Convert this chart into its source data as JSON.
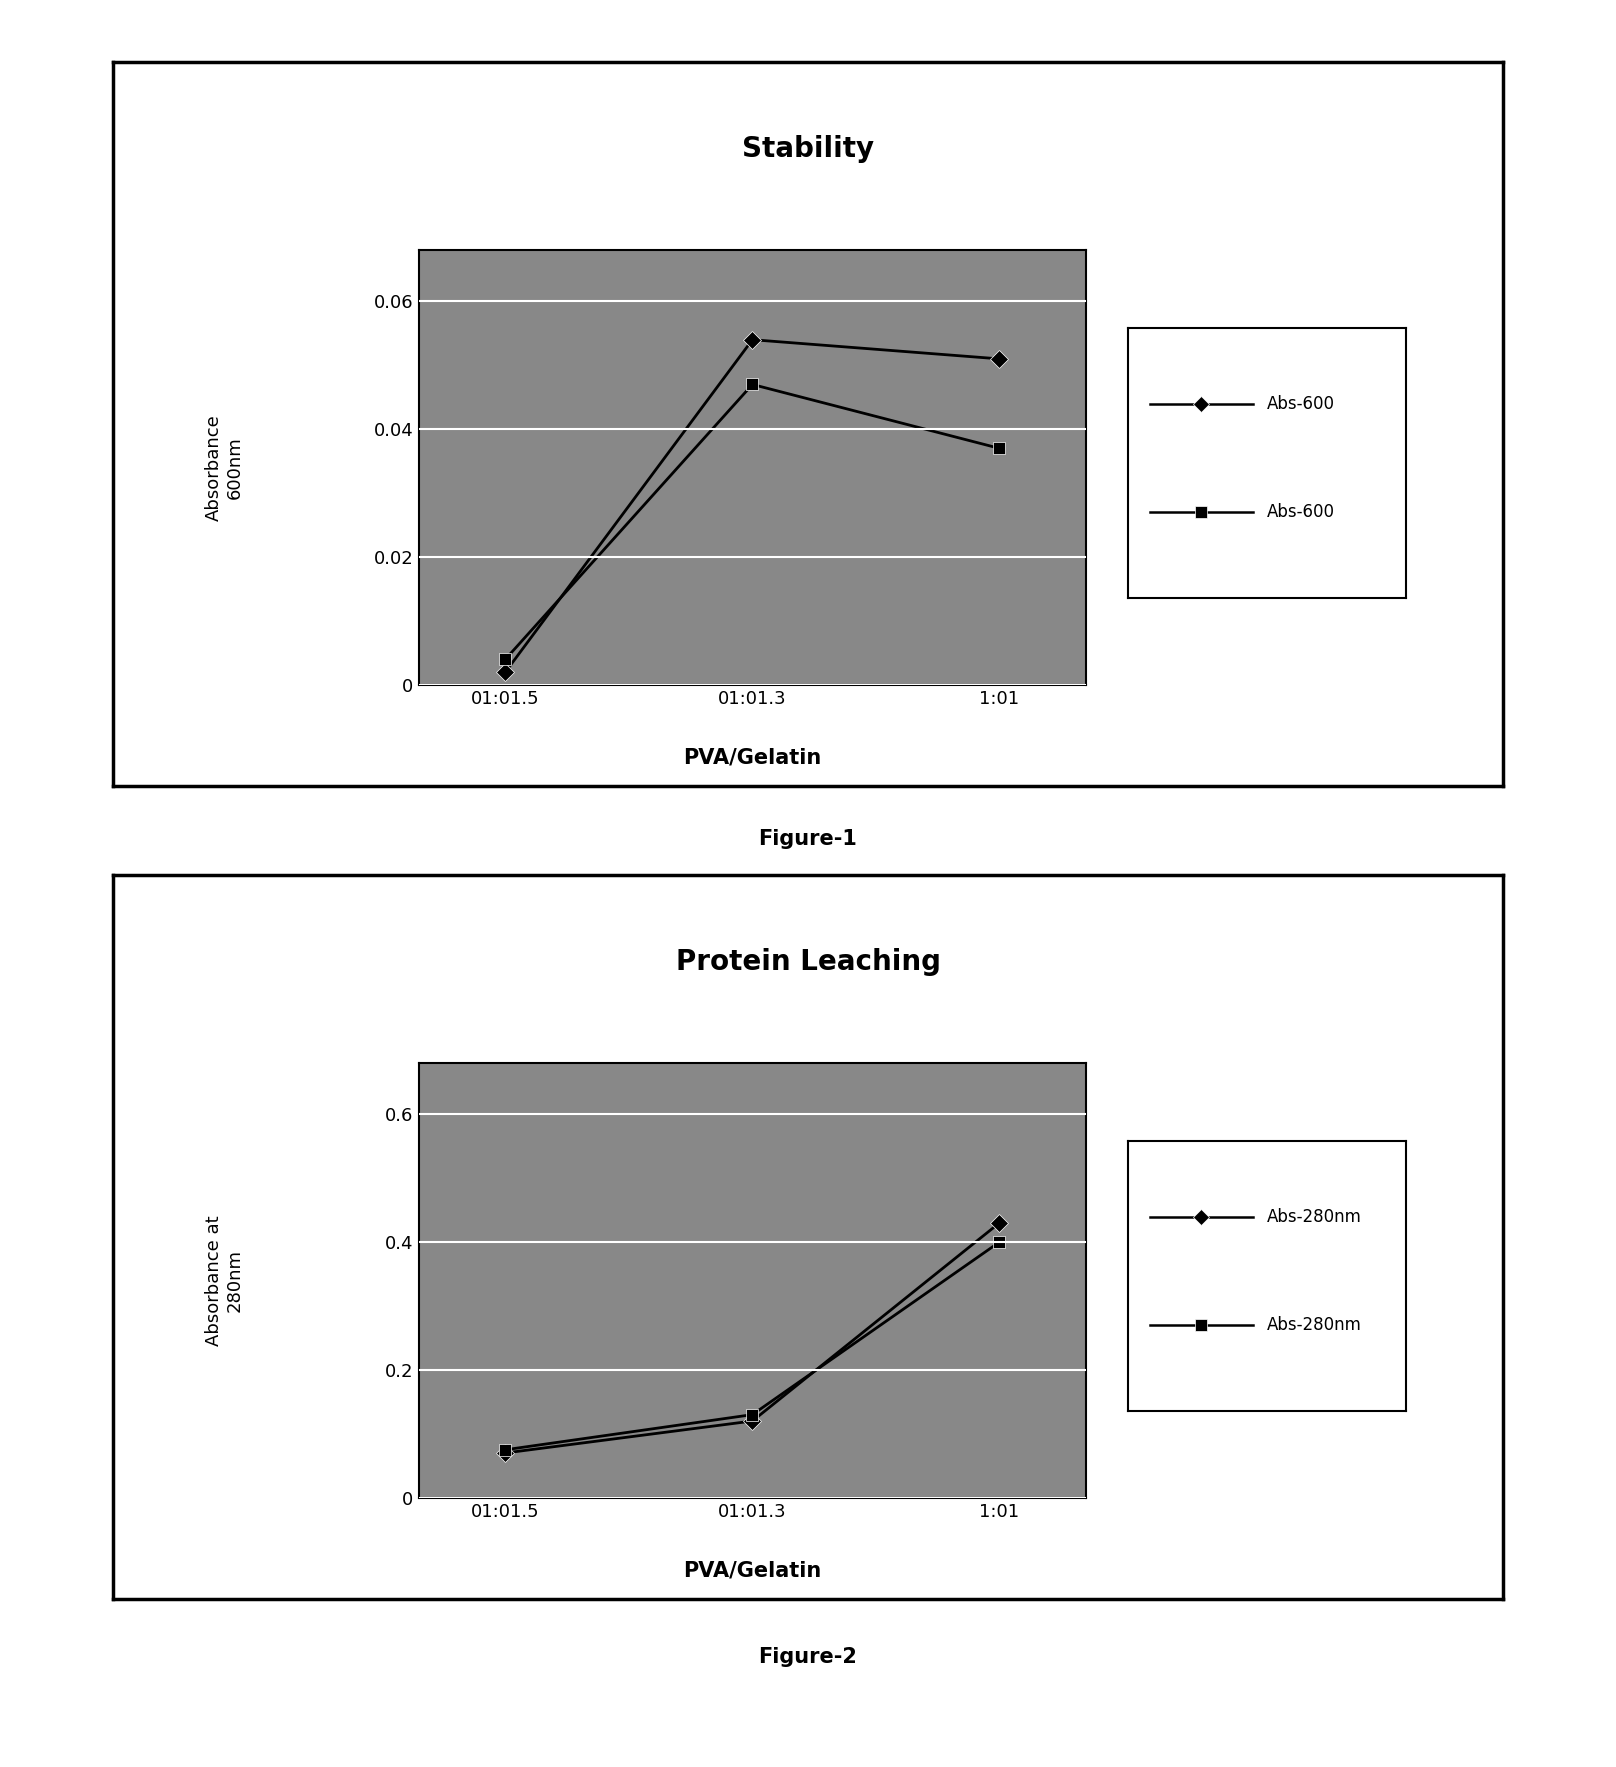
{
  "fig1": {
    "title": "Stability",
    "xlabel": "PVA/Gelatin",
    "ylabel": "Absorbance\n600nm",
    "xtick_labels": [
      "01:01.5",
      "01:01.3",
      "1:01"
    ],
    "ylim": [
      0,
      0.068
    ],
    "yticks": [
      0,
      0.02,
      0.04,
      0.06
    ],
    "series": [
      {
        "label": "Abs-600",
        "y": [
          0.002,
          0.054,
          0.051
        ],
        "color": "#000000",
        "marker": "D",
        "linestyle": "-",
        "linewidth": 2.0
      },
      {
        "label": "Abs-600",
        "y": [
          0.004,
          0.047,
          0.037
        ],
        "color": "#000000",
        "marker": "s",
        "linestyle": "-",
        "linewidth": 2.0
      }
    ],
    "caption": "Figure-1"
  },
  "fig2": {
    "title": "Protein Leaching",
    "xlabel": "PVA/Gelatin",
    "ylabel": "Absorbance at\n280nm",
    "xtick_labels": [
      "01:01.5",
      "01:01.3",
      "1:01"
    ],
    "ylim": [
      0,
      0.68
    ],
    "yticks": [
      0,
      0.2,
      0.4,
      0.6
    ],
    "series": [
      {
        "label": "Abs-280nm",
        "y": [
          0.07,
          0.12,
          0.43
        ],
        "color": "#000000",
        "marker": "D",
        "linestyle": "-",
        "linewidth": 2.0
      },
      {
        "label": "Abs-280nm",
        "y": [
          0.075,
          0.13,
          0.4
        ],
        "color": "#000000",
        "marker": "s",
        "linestyle": "-",
        "linewidth": 2.0
      }
    ],
    "caption": "Figure-2"
  },
  "plot_bg": "#888888",
  "panel_bg": "#ffffff",
  "outer_bg": "#ffffff",
  "panel_border_lw": 2.5,
  "title_fontsize": 20,
  "xlabel_fontsize": 15,
  "ylabel_fontsize": 13,
  "tick_fontsize": 13,
  "legend_fontsize": 12,
  "caption_fontsize": 15,
  "marker_size": 9,
  "grid_color": "#ffffff",
  "grid_lw": 1.5
}
